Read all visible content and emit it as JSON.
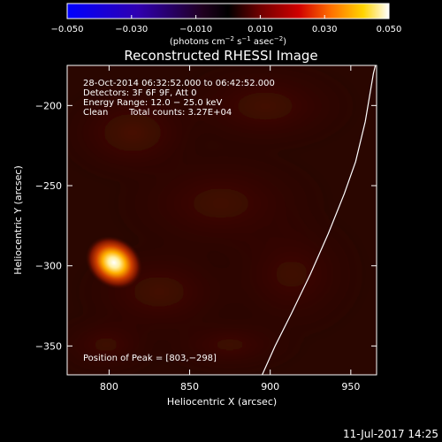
{
  "colorbar": {
    "ticks": [
      "−0.050",
      "−0.030",
      "−0.010",
      "0.010",
      "0.030",
      "0.050"
    ],
    "tick_values": [
      -0.05,
      -0.03,
      -0.01,
      0.01,
      0.03,
      0.05
    ],
    "range": [
      -0.05,
      0.05
    ],
    "units_main": "(photons cm",
    "units_sup1": "−2",
    "units_mid": " s",
    "units_sup2": "−1",
    "units_mid2": " asec",
    "units_sup3": "−2",
    "units_end": ")"
  },
  "chart_data": {
    "type": "heatmap",
    "title": "Reconstructed RHESSI Image",
    "xlabel": "Heliocentric X (arcsec)",
    "ylabel": "Heliocentric Y (arcsec)",
    "xlim": [
      774,
      966
    ],
    "ylim": [
      -368,
      -175
    ],
    "xticks": [
      800,
      850,
      900,
      950
    ],
    "yticks": [
      -200,
      -250,
      -300,
      -350
    ],
    "colormap": "hot (black-red-yellow-white)",
    "peak_position": [
      803,
      -298
    ],
    "limb_curve": [
      [
        895,
        -368
      ],
      [
        903,
        -350
      ],
      [
        913,
        -330
      ],
      [
        925,
        -305
      ],
      [
        936,
        -280
      ],
      [
        946,
        -255
      ],
      [
        953,
        -235
      ],
      [
        959,
        -210
      ],
      [
        964,
        -180
      ],
      [
        966,
        -172
      ]
    ],
    "annotations": {
      "time": "28-Oct-2014 06:32:52.000 to 06:42:52.000",
      "detectors": "Detectors: 3F 6F 9F, Att 0",
      "energy": "Energy Range: 12.0 − 25.0 keV",
      "clean": "Clean",
      "counts": "Total counts: 3.27E+04",
      "peak": "Position of Peak = [803,−298]"
    }
  },
  "footer": {
    "timestamp": "11-Jul-2017 14:25"
  }
}
